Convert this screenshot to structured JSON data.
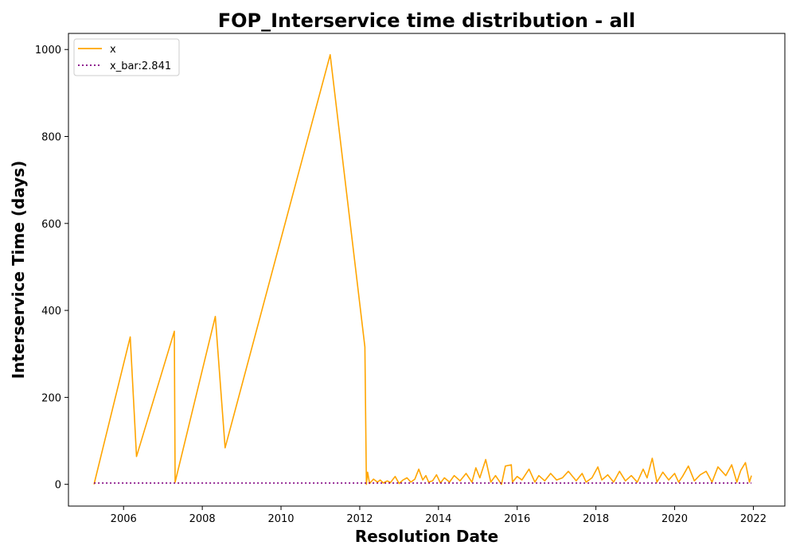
{
  "chart_data": {
    "type": "line",
    "title": "FOP_Interservice time distribution - all",
    "xlabel": "Resolution Date",
    "ylabel": "Interservice Time (days)",
    "xlim": [
      2004.6,
      2022.8
    ],
    "ylim": [
      -50,
      1037
    ],
    "xticks": [
      2006,
      2008,
      2010,
      2012,
      2014,
      2016,
      2018,
      2020,
      2022
    ],
    "yticks": [
      0,
      200,
      400,
      600,
      800,
      1000
    ],
    "grid": false,
    "legend": "top-left",
    "series": [
      {
        "name": "x",
        "color": "#FFA500",
        "style": "solid",
        "x": [
          2005.25,
          2006.17,
          2006.33,
          2007.29,
          2007.31,
          2008.33,
          2008.58,
          2011.25,
          2012.13,
          2012.17,
          2012.2,
          2012.25,
          2012.35,
          2012.45,
          2012.52,
          2012.6,
          2012.7,
          2012.78,
          2012.9,
          2013.0,
          2013.1,
          2013.2,
          2013.3,
          2013.4,
          2013.5,
          2013.6,
          2013.68,
          2013.75,
          2013.85,
          2013.95,
          2014.05,
          2014.15,
          2014.28,
          2014.4,
          2014.55,
          2014.7,
          2014.85,
          2014.95,
          2015.05,
          2015.2,
          2015.33,
          2015.45,
          2015.6,
          2015.7,
          2015.85,
          2015.88,
          2016.0,
          2016.12,
          2016.3,
          2016.45,
          2016.55,
          2016.7,
          2016.85,
          2017.0,
          2017.15,
          2017.3,
          2017.5,
          2017.65,
          2017.75,
          2017.9,
          2018.05,
          2018.15,
          2018.3,
          2018.45,
          2018.6,
          2018.75,
          2018.9,
          2019.05,
          2019.2,
          2019.3,
          2019.43,
          2019.55,
          2019.7,
          2019.85,
          2020.0,
          2020.1,
          2020.2,
          2020.35,
          2020.5,
          2020.65,
          2020.8,
          2020.95,
          2021.1,
          2021.3,
          2021.45,
          2021.58,
          2021.68,
          2021.8,
          2021.9,
          2021.95
        ],
        "y": [
          0,
          339,
          64,
          352,
          5,
          386,
          84,
          988,
          316,
          0,
          28,
          2,
          12,
          5,
          10,
          3,
          8,
          4,
          18,
          2,
          10,
          15,
          5,
          12,
          35,
          10,
          20,
          5,
          8,
          22,
          3,
          15,
          5,
          20,
          8,
          25,
          5,
          38,
          15,
          57,
          5,
          20,
          0,
          42,
          45,
          5,
          18,
          10,
          35,
          5,
          20,
          8,
          25,
          10,
          15,
          30,
          8,
          25,
          5,
          15,
          40,
          10,
          22,
          5,
          30,
          8,
          20,
          5,
          35,
          15,
          60,
          5,
          28,
          10,
          25,
          5,
          18,
          42,
          8,
          22,
          30,
          5,
          40,
          20,
          45,
          5,
          32,
          50,
          5,
          20
        ]
      },
      {
        "name": "x_bar:2.841",
        "color": "#800080",
        "style": "dotted",
        "x": [
          2005.25,
          2021.95
        ],
        "y": [
          2.841,
          2.841
        ]
      }
    ]
  }
}
